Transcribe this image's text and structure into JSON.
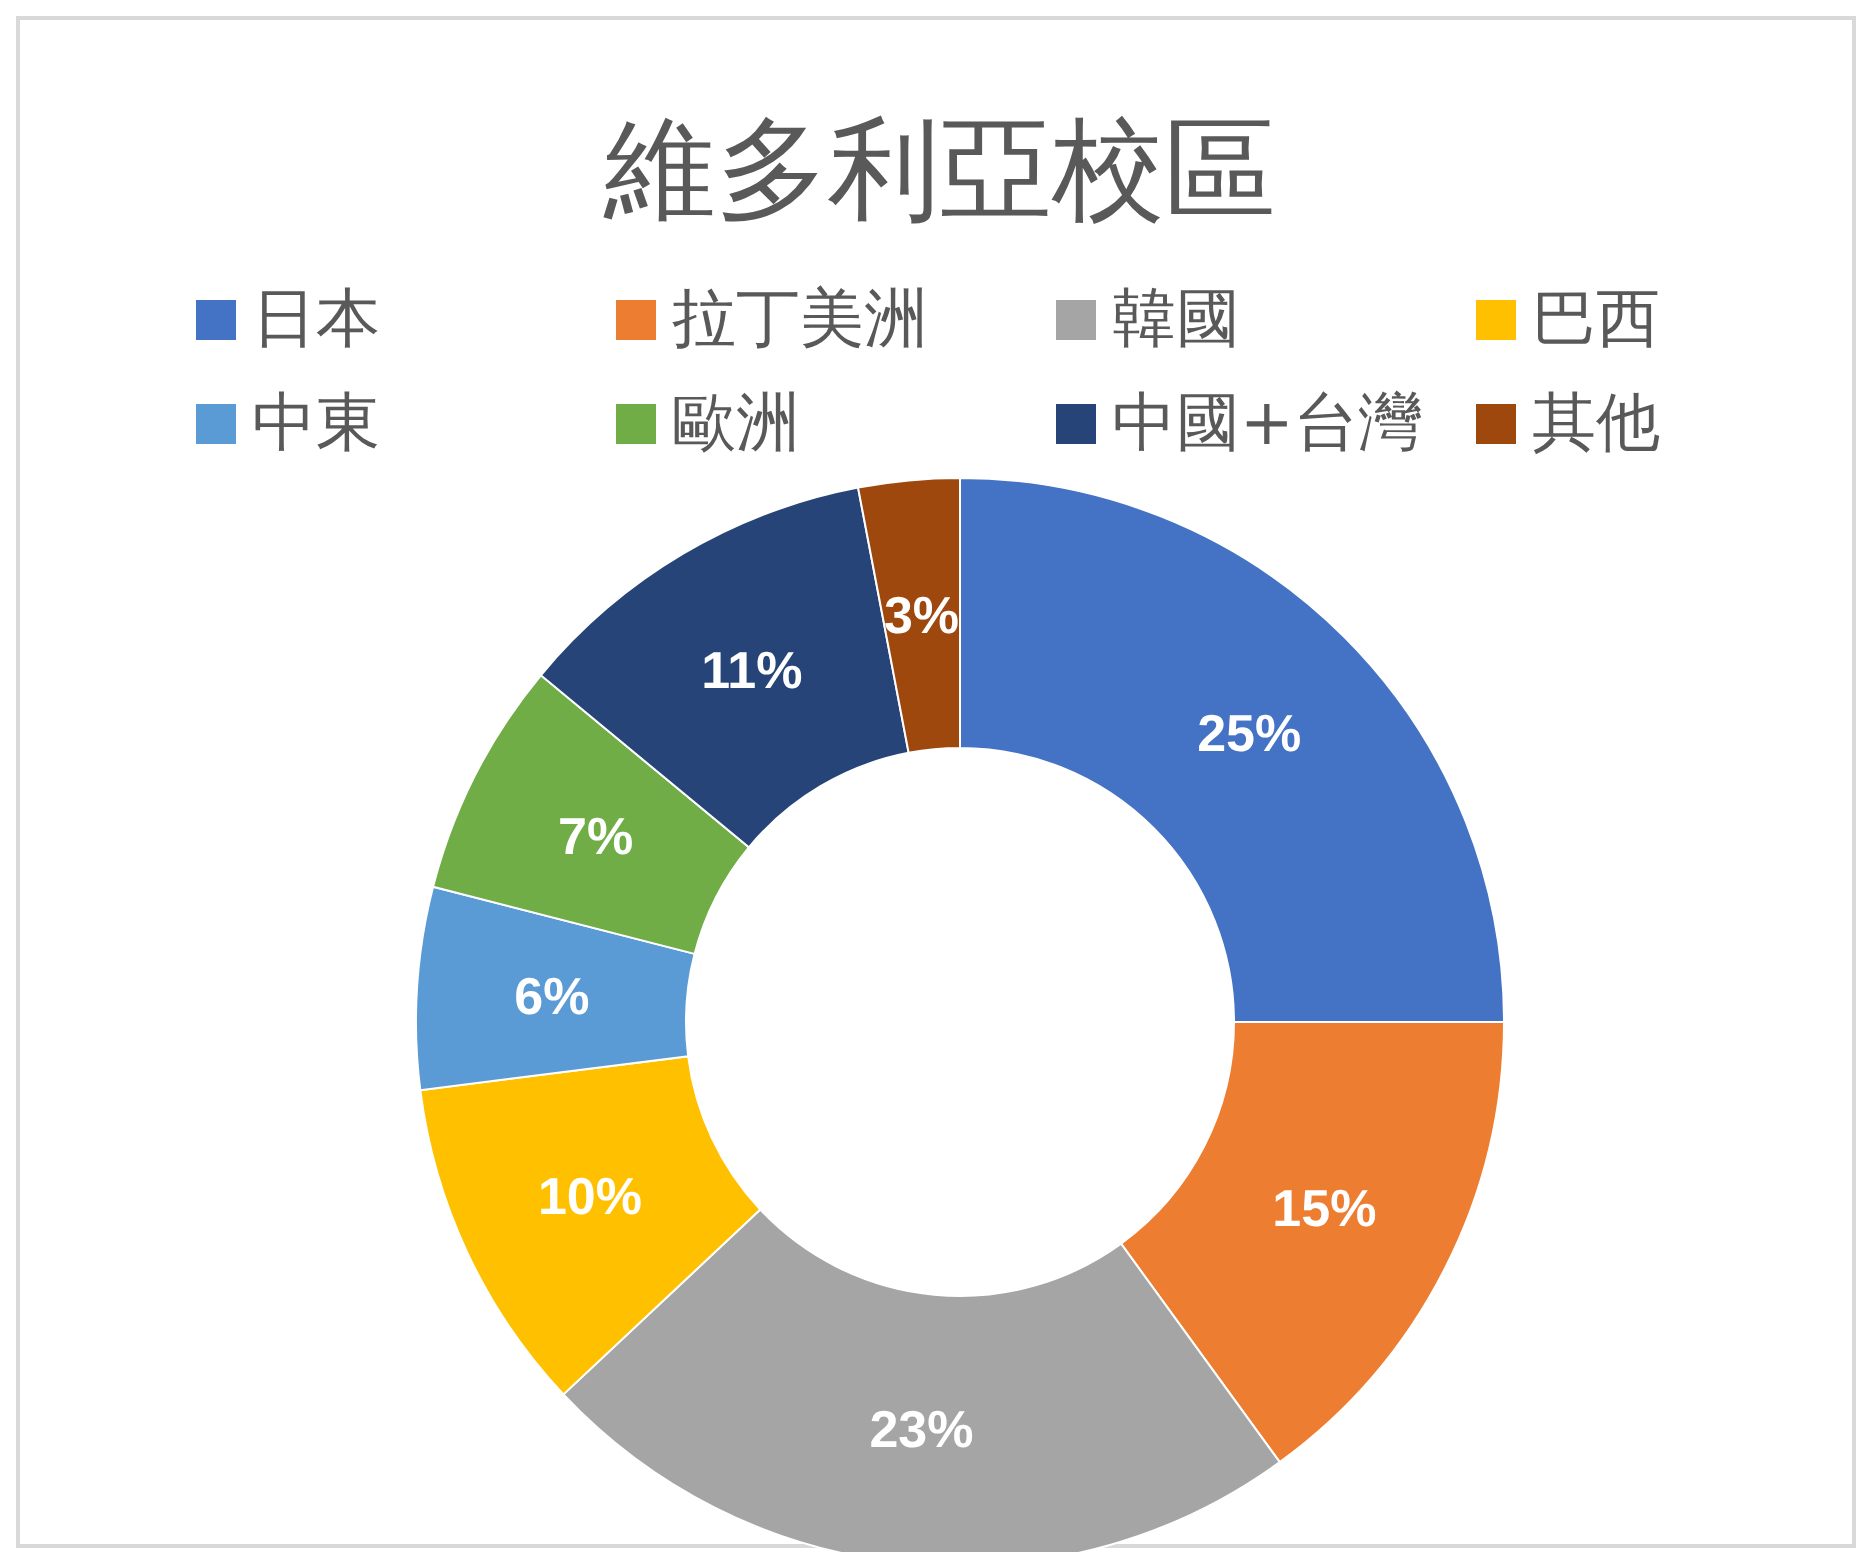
{
  "chart_data": {
    "type": "donut",
    "title": "維多利亞校區",
    "categories": [
      "日本",
      "拉丁美洲",
      "韓國",
      "巴西",
      "中東",
      "歐洲",
      "中國+台灣",
      "其他"
    ],
    "values": [
      25,
      15,
      23,
      10,
      6,
      7,
      11,
      3
    ],
    "colors": [
      "#4472c4",
      "#ed7d31",
      "#a5a5a5",
      "#ffc000",
      "#5b9bd5",
      "#70ad47",
      "#264478",
      "#9e480e"
    ],
    "value_labels": [
      "25%",
      "15%",
      "23%",
      "10%",
      "6%",
      "7%",
      "11%",
      "3%"
    ],
    "legend": "top"
  }
}
